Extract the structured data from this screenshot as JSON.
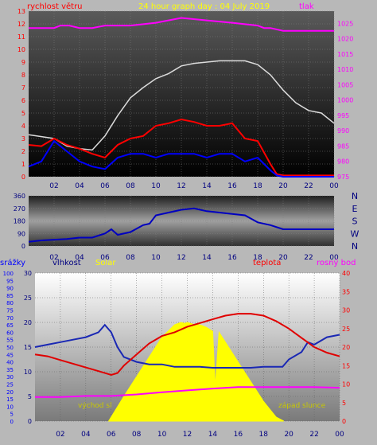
{
  "header": {
    "left_label": "rychlost větru",
    "title": "24 hour graph day : 04 July 2019",
    "right_label": "tlak"
  },
  "colors": {
    "background": "#b8b8b8",
    "wind": "#ff0000",
    "gust": "#0000ff",
    "pressure": "#ff00ff",
    "temperature_like": "#ffffff",
    "axis_right": "#ff00ff",
    "solar": "#ffff00",
    "humidity": "#1a28b4",
    "temperature": "#e00000",
    "dew_point": "#ff00ff",
    "rain_axis": "#0000ff",
    "yellow_label": "#ffff00"
  },
  "chart_data": [
    {
      "type": "line",
      "panel": "wind-pressure",
      "x_ticks": [
        "02",
        "04",
        "06",
        "08",
        "10",
        "12",
        "14",
        "16",
        "18",
        "20",
        "22",
        "00"
      ],
      "y_left_ticks": [
        "0",
        "1",
        "2",
        "3",
        "4",
        "5",
        "6",
        "7",
        "8",
        "9",
        "10",
        "11",
        "12",
        "13"
      ],
      "y_right_ticks": [
        "975",
        "980",
        "985",
        "990",
        "995",
        "1000",
        "1005",
        "1010",
        "1015",
        "1020",
        "1025"
      ],
      "ylim_left": [
        0,
        13
      ],
      "ylim_right": [
        975,
        1029
      ],
      "xlim": [
        0,
        24
      ],
      "series": [
        {
          "name": "tlak",
          "color": "#ff00ff",
          "x": [
            0,
            2,
            2.5,
            3.2,
            4,
            5,
            6,
            8,
            10,
            12,
            14,
            16,
            18,
            18.5,
            19,
            20,
            22,
            24
          ],
          "values": [
            1023.5,
            1023.5,
            1024.3,
            1024.3,
            1023.5,
            1023.5,
            1024.3,
            1024.3,
            1025.2,
            1026.8,
            1026,
            1025.2,
            1024.3,
            1023.5,
            1023.5,
            1022.6,
            1022.6,
            1022.6
          ]
        },
        {
          "name": "",
          "color": "#dcdcdc",
          "x": [
            0,
            2,
            3,
            4,
            5,
            6,
            7,
            8,
            9,
            10,
            11,
            12,
            13,
            14,
            15,
            16,
            17,
            18,
            19,
            20,
            21,
            22,
            23,
            24
          ],
          "values": [
            3.3,
            3.0,
            2.4,
            2.2,
            2.1,
            3.2,
            4.8,
            6.2,
            7.0,
            7.7,
            8.1,
            8.7,
            8.9,
            9.0,
            9.1,
            9.1,
            9.1,
            8.8,
            8.0,
            6.8,
            5.8,
            5.2,
            5.0,
            4.2
          ]
        },
        {
          "name": "",
          "color": "#ff0000",
          "x": [
            0,
            1,
            2,
            3,
            4,
            5,
            6,
            7,
            8,
            9,
            10,
            11,
            12,
            13,
            14,
            15,
            16,
            17,
            18,
            19,
            19.5,
            20,
            21,
            22,
            23,
            24
          ],
          "values": [
            2.5,
            2.4,
            3.0,
            2.5,
            2.2,
            1.8,
            1.5,
            2.5,
            3.0,
            3.2,
            4.0,
            4.2,
            4.5,
            4.3,
            4.0,
            4.0,
            4.2,
            3.0,
            2.8,
            1.0,
            0.2,
            0.1,
            0.1,
            0.1,
            0.1,
            0.1
          ]
        },
        {
          "name": "",
          "color": "#0000ff",
          "x": [
            0,
            1,
            2,
            3,
            4,
            5,
            6,
            7,
            8,
            9,
            10,
            11,
            12,
            13,
            14,
            15,
            16,
            17,
            18,
            19,
            19.5,
            20,
            21,
            22,
            23,
            24
          ],
          "values": [
            0.8,
            1.2,
            2.8,
            2.0,
            1.2,
            0.8,
            0.6,
            1.5,
            1.8,
            1.8,
            1.5,
            1.8,
            1.8,
            1.8,
            1.5,
            1.8,
            1.8,
            1.2,
            1.5,
            0.5,
            0.1,
            0.0,
            0.0,
            0.0,
            0.0,
            0.0
          ]
        }
      ]
    },
    {
      "type": "line",
      "panel": "wind-direction",
      "x_ticks": [
        "02",
        "04",
        "06",
        "08",
        "10",
        "12",
        "14",
        "16",
        "18",
        "20",
        "22",
        "00"
      ],
      "y_left_ticks": [
        "0",
        "90",
        "180",
        "270",
        "360"
      ],
      "y_right_ticks": [
        "N",
        "W",
        "S",
        "E",
        "N"
      ],
      "ylim": [
        0,
        360
      ],
      "xlim": [
        0,
        24
      ],
      "series": [
        {
          "name": "",
          "color": "#0000c0",
          "x": [
            0,
            1,
            2,
            3,
            4,
            5,
            6,
            6.5,
            7,
            8,
            9,
            9.5,
            10,
            11,
            12,
            13,
            14,
            15,
            16,
            17,
            18,
            19,
            20,
            21,
            22,
            23,
            24
          ],
          "values": [
            30,
            40,
            45,
            50,
            60,
            60,
            90,
            120,
            80,
            100,
            150,
            160,
            220,
            240,
            260,
            270,
            250,
            240,
            230,
            220,
            170,
            150,
            120,
            120,
            120,
            120,
            120
          ]
        }
      ]
    },
    {
      "type": "line",
      "panel": "humidity-temperature",
      "header_labels": {
        "rain": "srážky",
        "humidity": "vlhkost",
        "solar": "Solar",
        "temperature": "teplota",
        "dew_point": "rosný bod"
      },
      "annotations": [
        "východ sl",
        "západ slunce"
      ],
      "x_ticks": [
        "02",
        "04",
        "06",
        "08",
        "10",
        "12",
        "14",
        "16",
        "18",
        "20",
        "22",
        "00"
      ],
      "y_rain_ticks": [
        "0",
        "5",
        "10",
        "15",
        "20",
        "25",
        "30",
        "35",
        "40",
        "45",
        "50",
        "55",
        "60",
        "65",
        "70",
        "75",
        "80",
        "85",
        "90",
        "95",
        "100"
      ],
      "y_left_ticks": [
        "0",
        "5",
        "10",
        "15",
        "20",
        "25",
        "30"
      ],
      "y_right_ticks": [
        "0",
        "5",
        "10",
        "15",
        "20",
        "25",
        "30",
        "35",
        "40"
      ],
      "ylim_left": [
        0,
        30
      ],
      "ylim_right": [
        0,
        40
      ],
      "xlim": [
        0,
        24
      ],
      "series": [
        {
          "name": "vlhkost",
          "color": "#1a28b4",
          "x": [
            0,
            1,
            2,
            3,
            4,
            5,
            5.5,
            6,
            6.5,
            7,
            8,
            9,
            10,
            11,
            12,
            13,
            14,
            15,
            16,
            17,
            18,
            19,
            19.5,
            20,
            21,
            21.5,
            22,
            23,
            24
          ],
          "values": [
            15,
            15.5,
            16,
            16.5,
            17,
            18,
            19.5,
            18,
            15,
            13,
            12,
            11.5,
            11.5,
            11,
            11,
            11,
            10.8,
            10.8,
            10.8,
            10.8,
            11,
            11,
            11,
            12.5,
            14,
            16,
            15.5,
            17,
            17.5
          ]
        },
        {
          "name": "teplota",
          "color": "#e00000",
          "x": [
            0,
            1,
            2,
            3,
            4,
            5,
            6,
            6.5,
            7,
            8,
            9,
            10,
            11,
            12,
            13,
            14,
            15,
            16,
            17,
            18,
            19,
            20,
            21,
            22,
            23,
            24
          ],
          "values": [
            18,
            17.5,
            16.5,
            15.5,
            14.5,
            13.5,
            12.5,
            13,
            15,
            18,
            21,
            23,
            24,
            25.5,
            26.5,
            27.5,
            28.5,
            29,
            29,
            28.5,
            27,
            25,
            22.5,
            20,
            18.5,
            17.5
          ]
        },
        {
          "name": "rosný bod",
          "color": "#ff00ff",
          "x": [
            0,
            2,
            4,
            6,
            8,
            10,
            12,
            14,
            16,
            18,
            20,
            22,
            24
          ],
          "values": [
            6.5,
            6.5,
            6.8,
            6.8,
            7.2,
            7.8,
            8.3,
            8.8,
            9.2,
            9.2,
            9.2,
            9.2,
            9.0
          ]
        }
      ],
      "solar": {
        "name": "Solar",
        "color": "#ffff00",
        "x": [
          5.8,
          7,
          8,
          9,
          10,
          11,
          11.5,
          11.8,
          12,
          12.5,
          13,
          13.5,
          14,
          14.2,
          14.5,
          15,
          16,
          17,
          18,
          19,
          19.6
        ],
        "values": [
          0,
          5,
          9,
          13,
          17,
          19.5,
          20,
          19.8,
          20,
          19.6,
          19.5,
          19,
          18.2,
          7,
          18,
          16,
          12,
          8,
          4,
          0.8,
          0
        ]
      }
    }
  ]
}
